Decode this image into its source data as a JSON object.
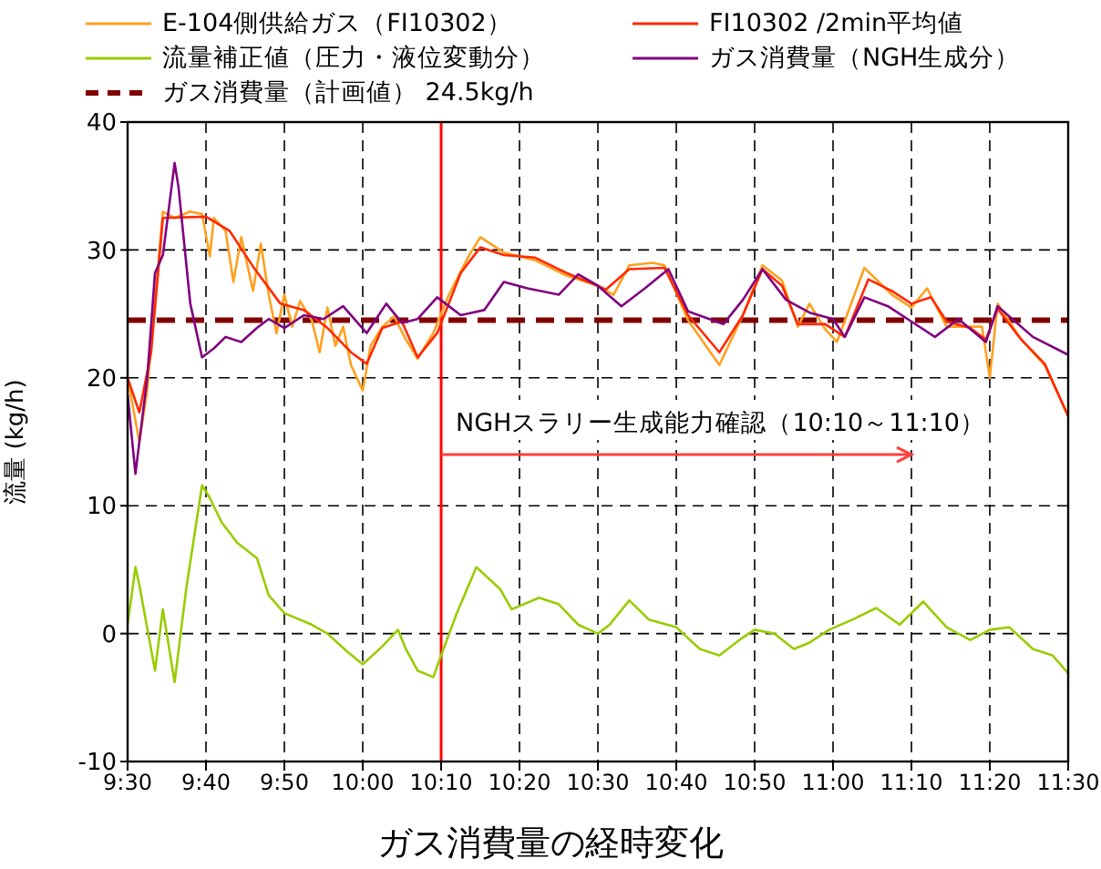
{
  "chart_data": {
    "type": "line",
    "title": "ガス消費量の経時変化",
    "ylabel": "流量 (kg/h)",
    "xlim": [
      9.5,
      11.5
    ],
    "xticks": [
      {
        "value": 9.5,
        "label": "9:30"
      },
      {
        "value": 9.6667,
        "label": "9:40"
      },
      {
        "value": 9.8333,
        "label": "9:50"
      },
      {
        "value": 10.0,
        "label": "10:00"
      },
      {
        "value": 10.1667,
        "label": "10:10"
      },
      {
        "value": 10.3333,
        "label": "10:20"
      },
      {
        "value": 10.5,
        "label": "10:30"
      },
      {
        "value": 10.6667,
        "label": "10:40"
      },
      {
        "value": 10.8333,
        "label": "10:50"
      },
      {
        "value": 11.0,
        "label": "11:00"
      },
      {
        "value": 11.1667,
        "label": "11:10"
      },
      {
        "value": 11.3333,
        "label": "11:20"
      },
      {
        "value": 11.5,
        "label": "11:30"
      }
    ],
    "ylim": [
      -10,
      40
    ],
    "yticks": [
      -10,
      0,
      10,
      20,
      30,
      40
    ],
    "grid": true,
    "legend": "top",
    "marker": "none",
    "line_style": "solid",
    "series": [
      {
        "name": "E-104側供給ガス（FI10302）",
        "color": "#ffa020",
        "x": [
          9.5,
          9.525,
          9.5417,
          9.5583,
          9.575,
          9.6,
          9.6333,
          9.6583,
          9.675,
          9.6833,
          9.7083,
          9.725,
          9.7417,
          9.7667,
          9.7833,
          9.8,
          9.8167,
          9.8333,
          9.85,
          9.8667,
          9.8917,
          9.9083,
          9.925,
          9.9417,
          9.9583,
          9.975,
          10.0,
          10.0167,
          10.0417,
          10.0667,
          10.0917,
          10.1167,
          10.15,
          10.1833,
          10.225,
          10.25,
          10.3,
          10.3667,
          10.4333,
          10.5,
          10.5333,
          10.5667,
          10.6167,
          10.6417,
          10.6917,
          10.7583,
          10.8083,
          10.85,
          10.8917,
          10.925,
          10.95,
          10.9833,
          11.0083,
          11.0667,
          11.125,
          11.1667,
          11.2,
          11.2417,
          11.2917,
          11.3167,
          11.3333,
          11.35,
          11.4,
          11.45,
          11.5
        ],
        "values": [
          20,
          15,
          19,
          26,
          33,
          32.5,
          33,
          32.8,
          29.5,
          32.5,
          31.5,
          27.5,
          31,
          26.8,
          30.5,
          26.5,
          23.5,
          26.5,
          24,
          26,
          24.5,
          22,
          25.5,
          22.5,
          24,
          21,
          19,
          22.5,
          24,
          24.8,
          23,
          21.5,
          23.5,
          26.5,
          29.5,
          31,
          29.8,
          29.2,
          28,
          27.2,
          26.5,
          28.8,
          29,
          28.8,
          24.5,
          21,
          24.9,
          28.8,
          27.6,
          24,
          25.8,
          23.8,
          22.8,
          28.6,
          26.5,
          25.5,
          27,
          24,
          24,
          24,
          20,
          25.8,
          23,
          21,
          17
        ]
      },
      {
        "name": "FI10302 /2min平均値",
        "color": "#ff2a00",
        "x": [
          9.5,
          9.525,
          9.55,
          9.575,
          9.6667,
          9.7167,
          9.7667,
          9.825,
          9.875,
          9.925,
          9.975,
          10.0083,
          10.0417,
          10.0833,
          10.1167,
          10.1583,
          10.2083,
          10.25,
          10.3,
          10.3667,
          10.4333,
          10.5,
          10.5167,
          10.5667,
          10.6417,
          10.6917,
          10.7583,
          10.8083,
          10.85,
          10.8917,
          10.925,
          10.9833,
          11.025,
          11.075,
          11.125,
          11.1667,
          11.2083,
          11.2417,
          11.2917,
          11.325,
          11.35,
          11.4,
          11.45,
          11.5
        ],
        "values": [
          20,
          17.3,
          22,
          32.5,
          32.6,
          31.5,
          28.7,
          25.8,
          25.3,
          23.9,
          22,
          21.1,
          23.9,
          24.4,
          21.6,
          23.5,
          28.2,
          30.2,
          29.6,
          29.4,
          28.2,
          27.2,
          26.9,
          28.5,
          28.6,
          24.9,
          22,
          24.9,
          28.5,
          27.2,
          24.2,
          24.2,
          23.2,
          27.7,
          26.8,
          25.8,
          26.3,
          24.4,
          23.9,
          23,
          25.4,
          23,
          21.1,
          17
        ]
      },
      {
        "name": "流量補正値（圧力・液位変動分）",
        "color": "#99cc00",
        "x": [
          9.5,
          9.5167,
          9.525,
          9.5583,
          9.575,
          9.6,
          9.625,
          9.6583,
          9.675,
          9.7,
          9.7333,
          9.775,
          9.8,
          9.8333,
          9.8917,
          9.925,
          9.9667,
          10.0,
          10.0417,
          10.075,
          10.0917,
          10.1167,
          10.15,
          10.1667,
          10.2,
          10.2417,
          10.2917,
          10.3167,
          10.375,
          10.4167,
          10.4583,
          10.5,
          10.525,
          10.5667,
          10.6083,
          10.6667,
          10.7167,
          10.7583,
          10.8083,
          10.8333,
          10.875,
          10.9167,
          10.95,
          10.9917,
          11.0417,
          11.0917,
          11.1417,
          11.1917,
          11.2417,
          11.2917,
          11.3333,
          11.375,
          11.425,
          11.4667,
          11.5
        ],
        "values": [
          0.7,
          5.2,
          3.8,
          -2.9,
          1.9,
          -3.8,
          3.6,
          11.6,
          10.6,
          8.7,
          7.1,
          5.9,
          3,
          1.6,
          0.7,
          0,
          -1.4,
          -2.4,
          -1,
          0.3,
          -1.2,
          -2.9,
          -3.4,
          -1.7,
          1.6,
          5.2,
          3.5,
          1.9,
          2.8,
          2.3,
          0.7,
          0,
          0.7,
          2.6,
          1.1,
          0.5,
          -1.2,
          -1.7,
          -0.3,
          0.3,
          0,
          -1.2,
          -0.7,
          0.3,
          1.1,
          2,
          0.7,
          2.5,
          0.5,
          -0.5,
          0.3,
          0.5,
          -1.2,
          -1.7,
          -3.1
        ]
      },
      {
        "name": "ガス消費量（NGH生成分）",
        "color": "#800080",
        "x": [
          9.5,
          9.5167,
          9.5417,
          9.5583,
          9.575,
          9.6,
          9.6083,
          9.6333,
          9.6583,
          9.6833,
          9.7083,
          9.7417,
          9.775,
          9.8,
          9.8333,
          9.875,
          9.9167,
          9.9583,
          10.0083,
          10.05,
          10.0833,
          10.1167,
          10.1583,
          10.2083,
          10.2583,
          10.3,
          10.35,
          10.4167,
          10.4583,
          10.5,
          10.55,
          10.6,
          10.65,
          10.6917,
          10.7667,
          10.8083,
          10.85,
          10.9,
          10.95,
          11.0,
          11.025,
          11.0667,
          11.1167,
          11.1667,
          11.2167,
          11.2667,
          11.325,
          11.35,
          11.425,
          11.5
        ],
        "values": [
          18.7,
          12.5,
          20,
          28.2,
          29.6,
          36.8,
          34.9,
          25.8,
          21.6,
          22.3,
          23.2,
          22.8,
          23.9,
          24.6,
          23.9,
          24.9,
          24.6,
          25.6,
          23.5,
          25.8,
          24.3,
          24.6,
          26.3,
          24.9,
          25.3,
          27.5,
          27,
          26.5,
          28.1,
          27.2,
          25.6,
          27,
          28.5,
          25.2,
          24.2,
          26.1,
          28.5,
          26.1,
          25.1,
          24.6,
          23.2,
          26.3,
          25.6,
          24.4,
          23.2,
          24.6,
          22.8,
          25.6,
          23.2,
          21.8
        ]
      }
    ],
    "ref_lines": [
      {
        "axis": "y",
        "value": 24.5,
        "label": "ガス消費量（計画値） 24.5kg/h",
        "color": "#800000",
        "line_style": "dashed"
      },
      {
        "axis": "x",
        "value": 10.1667,
        "color": "#ff0000",
        "line_style": "solid"
      }
    ],
    "annotations": [
      {
        "text": "NGHスラリー生成能力確認（10:10～11:10）",
        "x": 10.1667,
        "y": 14
      }
    ]
  }
}
